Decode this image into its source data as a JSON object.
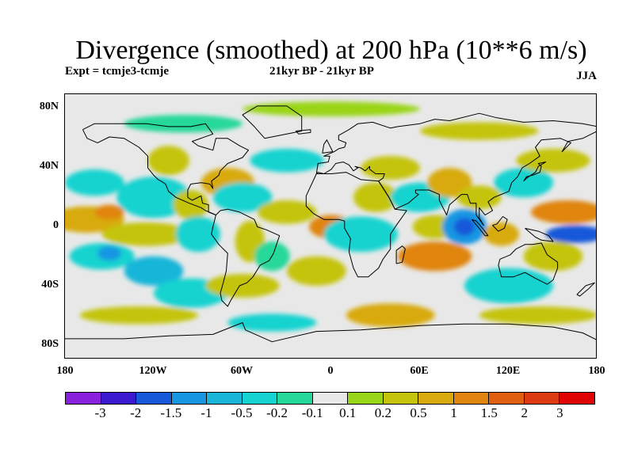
{
  "title": "Divergence (smoothed) at 200 hPa (10**6 m/s)",
  "experiment": "Expt = tcmje3-tcmje",
  "period": "21kyr BP - 21kyr BP",
  "season": "JJA",
  "lat_axis": [
    "80N",
    "40N",
    "0",
    "40S",
    "80S"
  ],
  "lon_axis": [
    "180",
    "120W",
    "60W",
    "0",
    "60E",
    "120E",
    "180"
  ],
  "colorbar": {
    "colors": [
      "#8a22dd",
      "#3a19cf",
      "#1859d9",
      "#1996e2",
      "#19b6d9",
      "#15d3d0",
      "#25d89a",
      "#e8e8e8",
      "#99d518",
      "#c4c40c",
      "#d8aa10",
      "#e0850f",
      "#e05f10",
      "#dc3b12",
      "#e00505"
    ],
    "labels": [
      "-3",
      "-2",
      "-1.5",
      "-1",
      "-0.5",
      "-0.2",
      "-0.1",
      "0.1",
      "0.2",
      "0.5",
      "1",
      "1.5",
      "2",
      "3"
    ]
  },
  "map": {
    "lon_range": [
      -180,
      180
    ],
    "lat_range": [
      -90,
      90
    ],
    "field_blobs": [
      {
        "lon": -165,
        "lat": 5,
        "rx": 25,
        "ry": 9,
        "level": 10
      },
      {
        "lon": -150,
        "lat": 10,
        "rx": 10,
        "ry": 5,
        "level": 11
      },
      {
        "lon": -160,
        "lat": 30,
        "rx": 20,
        "ry": 9,
        "level": 5
      },
      {
        "lon": -155,
        "lat": -20,
        "rx": 22,
        "ry": 9,
        "level": 5
      },
      {
        "lon": -150,
        "lat": -18,
        "rx": 8,
        "ry": 5,
        "level": 3
      },
      {
        "lon": -120,
        "lat": 20,
        "rx": 25,
        "ry": 14,
        "level": 5
      },
      {
        "lon": -125,
        "lat": -5,
        "rx": 30,
        "ry": 8,
        "level": 9
      },
      {
        "lon": -120,
        "lat": -30,
        "rx": 20,
        "ry": 10,
        "level": 4
      },
      {
        "lon": -110,
        "lat": 45,
        "rx": 14,
        "ry": 10,
        "level": 9
      },
      {
        "lon": -95,
        "lat": 15,
        "rx": 12,
        "ry": 10,
        "level": 9
      },
      {
        "lon": -90,
        "lat": -5,
        "rx": 15,
        "ry": 12,
        "level": 5
      },
      {
        "lon": -95,
        "lat": -45,
        "rx": 25,
        "ry": 10,
        "level": 5
      },
      {
        "lon": -70,
        "lat": 30,
        "rx": 18,
        "ry": 10,
        "level": 10
      },
      {
        "lon": -60,
        "lat": 20,
        "rx": 20,
        "ry": 10,
        "level": 5
      },
      {
        "lon": -55,
        "lat": -10,
        "rx": 10,
        "ry": 14,
        "level": 9
      },
      {
        "lon": -40,
        "lat": -20,
        "rx": 12,
        "ry": 10,
        "level": 6
      },
      {
        "lon": -30,
        "lat": 45,
        "rx": 25,
        "ry": 8,
        "level": 5
      },
      {
        "lon": -30,
        "lat": 10,
        "rx": 20,
        "ry": 8,
        "level": 9
      },
      {
        "lon": -60,
        "lat": -40,
        "rx": 25,
        "ry": 8,
        "level": 9
      },
      {
        "lon": -10,
        "lat": -30,
        "rx": 20,
        "ry": 10,
        "level": 9
      },
      {
        "lon": 0,
        "lat": 0,
        "rx": 15,
        "ry": 8,
        "level": 11
      },
      {
        "lon": 20,
        "lat": -5,
        "rx": 25,
        "ry": 12,
        "level": 5
      },
      {
        "lon": 30,
        "lat": 20,
        "rx": 15,
        "ry": 10,
        "level": 9
      },
      {
        "lon": 40,
        "lat": 40,
        "rx": 20,
        "ry": 8,
        "level": 9
      },
      {
        "lon": 60,
        "lat": 20,
        "rx": 20,
        "ry": 10,
        "level": 5
      },
      {
        "lon": 70,
        "lat": 0,
        "rx": 15,
        "ry": 8,
        "level": 9
      },
      {
        "lon": 70,
        "lat": -20,
        "rx": 25,
        "ry": 10,
        "level": 11
      },
      {
        "lon": 80,
        "lat": 30,
        "rx": 15,
        "ry": 10,
        "level": 10
      },
      {
        "lon": 90,
        "lat": 0,
        "rx": 15,
        "ry": 12,
        "level": 3
      },
      {
        "lon": 90,
        "lat": 0,
        "rx": 7,
        "ry": 6,
        "level": 2
      },
      {
        "lon": 100,
        "lat": 20,
        "rx": 15,
        "ry": 8,
        "level": 9
      },
      {
        "lon": 115,
        "lat": -5,
        "rx": 12,
        "ry": 8,
        "level": 10
      },
      {
        "lon": 120,
        "lat": -40,
        "rx": 30,
        "ry": 12,
        "level": 5
      },
      {
        "lon": 130,
        "lat": 30,
        "rx": 20,
        "ry": 10,
        "level": 5
      },
      {
        "lon": 160,
        "lat": 10,
        "rx": 25,
        "ry": 8,
        "level": 11
      },
      {
        "lon": 165,
        "lat": -5,
        "rx": 20,
        "ry": 6,
        "level": 2
      },
      {
        "lon": 150,
        "lat": -20,
        "rx": 20,
        "ry": 10,
        "level": 9
      },
      {
        "lon": 150,
        "lat": 45,
        "rx": 25,
        "ry": 8,
        "level": 9
      },
      {
        "lon": 140,
        "lat": -60,
        "rx": 40,
        "ry": 6,
        "level": 9
      },
      {
        "lon": 40,
        "lat": -60,
        "rx": 30,
        "ry": 8,
        "level": 10
      },
      {
        "lon": -130,
        "lat": -60,
        "rx": 40,
        "ry": 6,
        "level": 9
      },
      {
        "lon": -40,
        "lat": -65,
        "rx": 30,
        "ry": 6,
        "level": 5
      },
      {
        "lon": 0,
        "lat": 80,
        "rx": 60,
        "ry": 5,
        "level": 8
      },
      {
        "lon": -100,
        "lat": 70,
        "rx": 40,
        "ry": 6,
        "level": 6
      },
      {
        "lon": 100,
        "lat": 65,
        "rx": 40,
        "ry": 6,
        "level": 9
      }
    ],
    "coastlines": [
      [
        [
          -168,
          66
        ],
        [
          -160,
          70
        ],
        [
          -140,
          70
        ],
        [
          -125,
          70
        ],
        [
          -110,
          68
        ],
        [
          -95,
          68
        ],
        [
          -85,
          70
        ],
        [
          -80,
          63
        ],
        [
          -94,
          58
        ],
        [
          -90,
          55
        ],
        [
          -80,
          52
        ],
        [
          -78,
          60
        ],
        [
          -70,
          60
        ],
        [
          -62,
          55
        ],
        [
          -56,
          52
        ],
        [
          -60,
          47
        ],
        [
          -70,
          43
        ],
        [
          -75,
          38
        ],
        [
          -76,
          35
        ],
        [
          -81,
          31
        ],
        [
          -80,
          26
        ],
        [
          -82,
          29
        ],
        [
          -88,
          30
        ],
        [
          -95,
          29
        ],
        [
          -97,
          25
        ],
        [
          -97,
          20
        ],
        [
          -94,
          18
        ],
        [
          -88,
          21
        ],
        [
          -87,
          16
        ],
        [
          -83,
          15
        ],
        [
          -83,
          10
        ],
        [
          -78,
          8
        ],
        [
          -80,
          9
        ],
        [
          -85,
          11
        ],
        [
          -88,
          13
        ],
        [
          -96,
          16
        ],
        [
          -105,
          20
        ],
        [
          -110,
          24
        ],
        [
          -112,
          29
        ],
        [
          -115,
          31
        ],
        [
          -117,
          32
        ],
        [
          -120,
          35
        ],
        [
          -124,
          40
        ],
        [
          -124,
          48
        ],
        [
          -130,
          54
        ],
        [
          -140,
          60
        ],
        [
          -150,
          61
        ],
        [
          -158,
          57
        ],
        [
          -165,
          60
        ],
        [
          -168,
          66
        ]
      ],
      [
        [
          -78,
          8
        ],
        [
          -75,
          11
        ],
        [
          -70,
          12
        ],
        [
          -62,
          10
        ],
        [
          -52,
          5
        ],
        [
          -50,
          0
        ],
        [
          -44,
          -2
        ],
        [
          -35,
          -6
        ],
        [
          -37,
          -12
        ],
        [
          -39,
          -18
        ],
        [
          -42,
          -23
        ],
        [
          -48,
          -26
        ],
        [
          -53,
          -34
        ],
        [
          -57,
          -38
        ],
        [
          -62,
          -40
        ],
        [
          -65,
          -45
        ],
        [
          -68,
          -50
        ],
        [
          -70,
          -54
        ],
        [
          -74,
          -50
        ],
        [
          -75,
          -45
        ],
        [
          -73,
          -38
        ],
        [
          -71,
          -30
        ],
        [
          -70,
          -18
        ],
        [
          -76,
          -12
        ],
        [
          -81,
          -5
        ],
        [
          -80,
          0
        ],
        [
          -78,
          8
        ]
      ],
      [
        [
          -45,
          60
        ],
        [
          -20,
          65
        ],
        [
          -20,
          75
        ],
        [
          -30,
          82
        ],
        [
          -50,
          82
        ],
        [
          -60,
          76
        ],
        [
          -52,
          68
        ],
        [
          -45,
          60
        ]
      ],
      [
        [
          -10,
          36
        ],
        [
          -9,
          43
        ],
        [
          -2,
          44
        ],
        [
          -1,
          48
        ],
        [
          -5,
          48
        ],
        [
          2,
          51
        ],
        [
          5,
          53
        ],
        [
          9,
          54
        ],
        [
          10,
          57
        ],
        [
          5,
          59
        ],
        [
          5,
          62
        ],
        [
          12,
          66
        ],
        [
          18,
          70
        ],
        [
          28,
          71
        ],
        [
          40,
          67
        ],
        [
          45,
          68
        ],
        [
          60,
          70
        ],
        [
          70,
          73
        ],
        [
          80,
          72
        ],
        [
          100,
          77
        ],
        [
          112,
          74
        ],
        [
          130,
          71
        ],
        [
          150,
          72
        ],
        [
          170,
          70
        ],
        [
          180,
          68
        ],
        [
          180,
          65
        ],
        [
          170,
          60
        ],
        [
          160,
          58
        ],
        [
          156,
          51
        ],
        [
          162,
          57
        ],
        [
          155,
          60
        ],
        [
          142,
          59
        ],
        [
          138,
          54
        ],
        [
          141,
          48
        ],
        [
          134,
          43
        ],
        [
          129,
          40
        ],
        [
          126,
          34
        ],
        [
          122,
          30
        ],
        [
          120,
          24
        ],
        [
          110,
          20
        ],
        [
          106,
          17
        ],
        [
          109,
          11
        ],
        [
          104,
          8
        ],
        [
          100,
          13
        ],
        [
          100,
          6
        ],
        [
          103,
          1
        ],
        [
          98,
          8
        ],
        [
          98,
          16
        ],
        [
          94,
          16
        ],
        [
          92,
          22
        ],
        [
          88,
          22
        ],
        [
          80,
          15
        ],
        [
          78,
          8
        ],
        [
          73,
          18
        ],
        [
          73,
          22
        ],
        [
          66,
          25
        ],
        [
          57,
          25
        ],
        [
          57,
          23
        ],
        [
          59,
          22
        ],
        [
          52,
          16
        ],
        [
          43,
          12
        ],
        [
          39,
          20
        ],
        [
          34,
          28
        ],
        [
          32,
          31
        ],
        [
          35,
          33
        ],
        [
          36,
          36
        ],
        [
          30,
          36
        ],
        [
          26,
          39
        ],
        [
          26,
          41
        ],
        [
          23,
          38
        ],
        [
          20,
          40
        ],
        [
          16,
          41
        ],
        [
          18,
          40
        ],
        [
          15,
          38
        ],
        [
          12,
          42
        ],
        [
          8,
          44
        ],
        [
          3,
          43
        ],
        [
          0,
          39
        ],
        [
          -5,
          36
        ],
        [
          -9,
          37
        ],
        [
          -10,
          36
        ]
      ],
      [
        [
          -10,
          36
        ],
        [
          -17,
          21
        ],
        [
          -17,
          14
        ],
        [
          -12,
          9
        ],
        [
          -5,
          5
        ],
        [
          5,
          5
        ],
        [
          9,
          4
        ],
        [
          9,
          -1
        ],
        [
          13,
          -8
        ],
        [
          12,
          -17
        ],
        [
          15,
          -28
        ],
        [
          18,
          -34
        ],
        [
          25,
          -34
        ],
        [
          32,
          -28
        ],
        [
          35,
          -22
        ],
        [
          40,
          -15
        ],
        [
          40,
          -5
        ],
        [
          44,
          1
        ],
        [
          51,
          11
        ],
        [
          43,
          12
        ],
        [
          39,
          20
        ],
        [
          32,
          31
        ],
        [
          20,
          32
        ],
        [
          10,
          37
        ],
        [
          0,
          36
        ],
        [
          -5,
          36
        ],
        [
          -10,
          36
        ]
      ],
      [
        [
          44,
          -25
        ],
        [
          48,
          -24
        ],
        [
          50,
          -15
        ],
        [
          48,
          -13
        ],
        [
          44,
          -16
        ],
        [
          44,
          -25
        ]
      ],
      [
        [
          114,
          -22
        ],
        [
          113,
          -26
        ],
        [
          115,
          -34
        ],
        [
          123,
          -34
        ],
        [
          131,
          -31
        ],
        [
          138,
          -35
        ],
        [
          146,
          -39
        ],
        [
          150,
          -36
        ],
        [
          153,
          -28
        ],
        [
          153,
          -24
        ],
        [
          146,
          -19
        ],
        [
          142,
          -11
        ],
        [
          136,
          -12
        ],
        [
          131,
          -12
        ],
        [
          125,
          -15
        ],
        [
          121,
          -19
        ],
        [
          114,
          -22
        ]
      ],
      [
        [
          95,
          5
        ],
        [
          98,
          4
        ],
        [
          103,
          -2
        ],
        [
          106,
          -6
        ],
        [
          104,
          -6
        ],
        [
          100,
          -1
        ],
        [
          95,
          5
        ]
      ],
      [
        [
          109,
          1
        ],
        [
          113,
          -3
        ],
        [
          117,
          -1
        ],
        [
          119,
          5
        ],
        [
          116,
          7
        ],
        [
          112,
          2
        ],
        [
          109,
          1
        ]
      ],
      [
        [
          131,
          -1
        ],
        [
          140,
          -3
        ],
        [
          147,
          -6
        ],
        [
          150,
          -10
        ],
        [
          142,
          -9
        ],
        [
          138,
          -7
        ],
        [
          131,
          -1
        ]
      ],
      [
        [
          130,
          31
        ],
        [
          132,
          34
        ],
        [
          136,
          35
        ],
        [
          141,
          37
        ],
        [
          142,
          41
        ],
        [
          140,
          43
        ],
        [
          145,
          44
        ],
        [
          140,
          41
        ],
        [
          138,
          37
        ],
        [
          132,
          33
        ],
        [
          130,
          31
        ]
      ],
      [
        [
          -6,
          50
        ],
        [
          -5,
          56
        ],
        [
          -3,
          59
        ],
        [
          0,
          53
        ],
        [
          1,
          51
        ],
        [
          -6,
          50
        ]
      ],
      [
        [
          166,
          -46
        ],
        [
          172,
          -40
        ],
        [
          178,
          -38
        ],
        [
          174,
          -42
        ],
        [
          168,
          -47
        ],
        [
          166,
          -46
        ]
      ],
      [
        [
          -24,
          65
        ],
        [
          -14,
          66
        ],
        [
          -14,
          64
        ],
        [
          -22,
          63
        ],
        [
          -24,
          65
        ]
      ],
      [
        [
          -180,
          -76
        ],
        [
          -140,
          -76
        ],
        [
          -110,
          -74
        ],
        [
          -80,
          -73
        ],
        [
          -60,
          -65
        ],
        [
          -58,
          -70
        ],
        [
          -40,
          -78
        ],
        [
          -10,
          -71
        ],
        [
          20,
          -70
        ],
        [
          60,
          -67
        ],
        [
          90,
          -66
        ],
        [
          120,
          -66
        ],
        [
          150,
          -68
        ],
        [
          170,
          -72
        ],
        [
          180,
          -77
        ]
      ]
    ]
  }
}
